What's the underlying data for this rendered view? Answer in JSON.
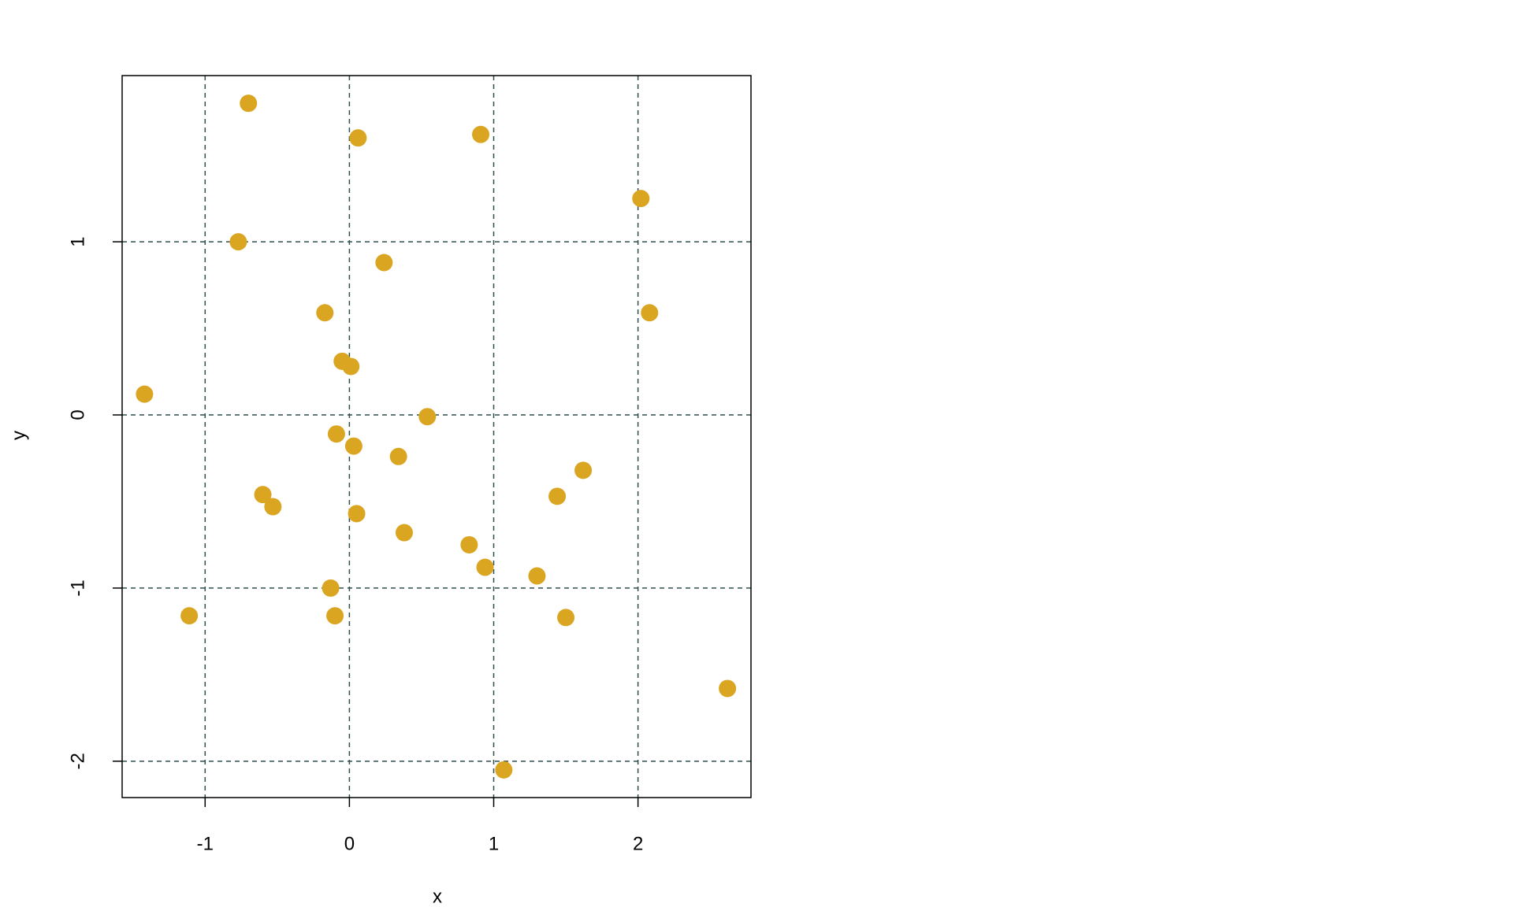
{
  "chart_data": {
    "type": "scatter",
    "xlabel": "x",
    "ylabel": "y",
    "x": [
      -0.7,
      0.06,
      0.91,
      2.02,
      -0.77,
      0.24,
      -0.17,
      2.08,
      -0.05,
      0.01,
      -1.42,
      0.54,
      -0.09,
      0.03,
      0.34,
      1.62,
      -0.6,
      -0.53,
      1.44,
      0.05,
      0.38,
      0.83,
      0.94,
      1.3,
      -0.13,
      -1.11,
      -0.1,
      1.5,
      2.62,
      1.07
    ],
    "values": [
      1.8,
      1.6,
      1.62,
      1.25,
      1.0,
      0.88,
      0.59,
      0.59,
      0.31,
      0.28,
      0.12,
      -0.01,
      -0.11,
      -0.18,
      -0.24,
      -0.32,
      -0.46,
      -0.53,
      -0.47,
      -0.57,
      -0.68,
      -0.75,
      -0.88,
      -0.93,
      -1.0,
      -1.16,
      -1.16,
      -1.17,
      -1.58,
      -2.05
    ],
    "color": "#DAA520",
    "xlim": [
      -1.575,
      2.783
    ],
    "ylim": [
      -2.21,
      1.96
    ],
    "xticks": [
      -1,
      0,
      1,
      2
    ],
    "yticks": [
      -2,
      -1,
      0,
      1
    ],
    "grid": true,
    "grid_color": "#2F4F4F"
  }
}
